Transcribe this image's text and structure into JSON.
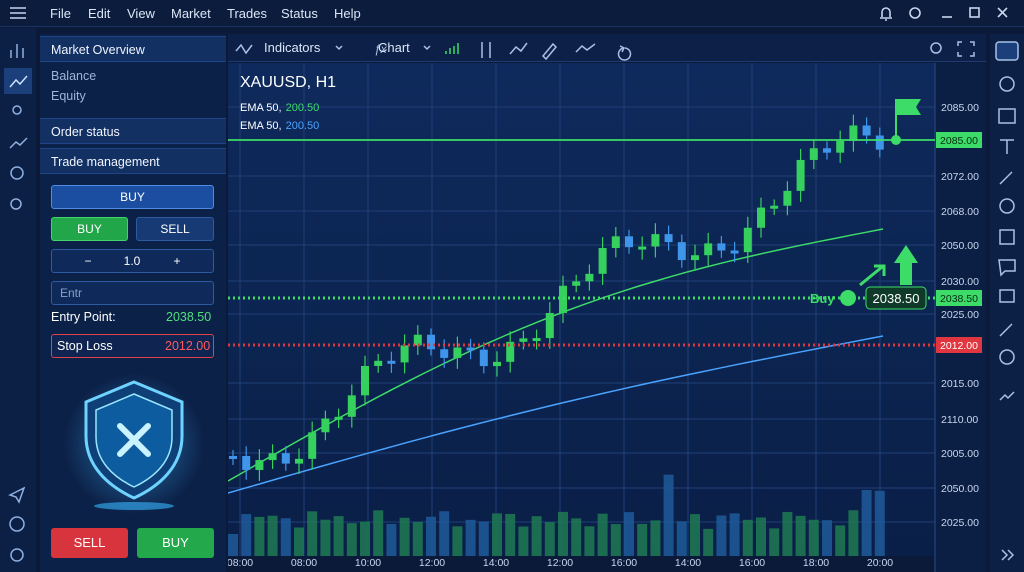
{
  "menu": [
    "File",
    "Edit",
    "View",
    "Market",
    "Trades",
    "Status",
    "Help"
  ],
  "sidebar": {
    "market_overview": "Market Overview",
    "items": [
      "Balance",
      "Equity"
    ],
    "order_status": "Order status",
    "trade_management": "Trade management",
    "top_buy": "BUY",
    "buy": "BUY",
    "sell": "SELL",
    "minus": "−",
    "lot": "1.0",
    "plus": "+",
    "entry_select": "Entr",
    "entry_point_label": "Entry Point:",
    "entry_point_value": "2038.50",
    "stop_loss_label": "Stop Loss",
    "stop_loss_value": "2012.00",
    "sell_button": "SELL",
    "buy_button": "BUY"
  },
  "toolbar": {
    "indicators": "Indicators",
    "chart": "Chart"
  },
  "chart": {
    "symbol": "XAUUSD, H1",
    "legend": [
      {
        "name": "EMA 50,",
        "value": "200.50",
        "color": "#3ddc68"
      },
      {
        "name": "EMA 50,",
        "value": "200.50",
        "color": "#4aa3ff"
      }
    ],
    "price_labels": [
      "2085.00",
      "2072.00",
      "2068.00",
      "2050.00",
      "2030.00",
      "2025.00",
      "2015.00",
      "2110.00",
      "2005.00",
      "2050.00",
      "2025.00"
    ],
    "time_labels": [
      "08:00",
      "08:00",
      "10:00",
      "12:00",
      "14:00",
      "12:00",
      "16:00",
      "14:00",
      "16:00",
      "18:00",
      "20:00"
    ],
    "target_tag": "2085.00",
    "entry_tag": "2038.50",
    "stop_tag": "2012.00",
    "buy_label": "Buy",
    "buy_price": "2038.50"
  }
}
